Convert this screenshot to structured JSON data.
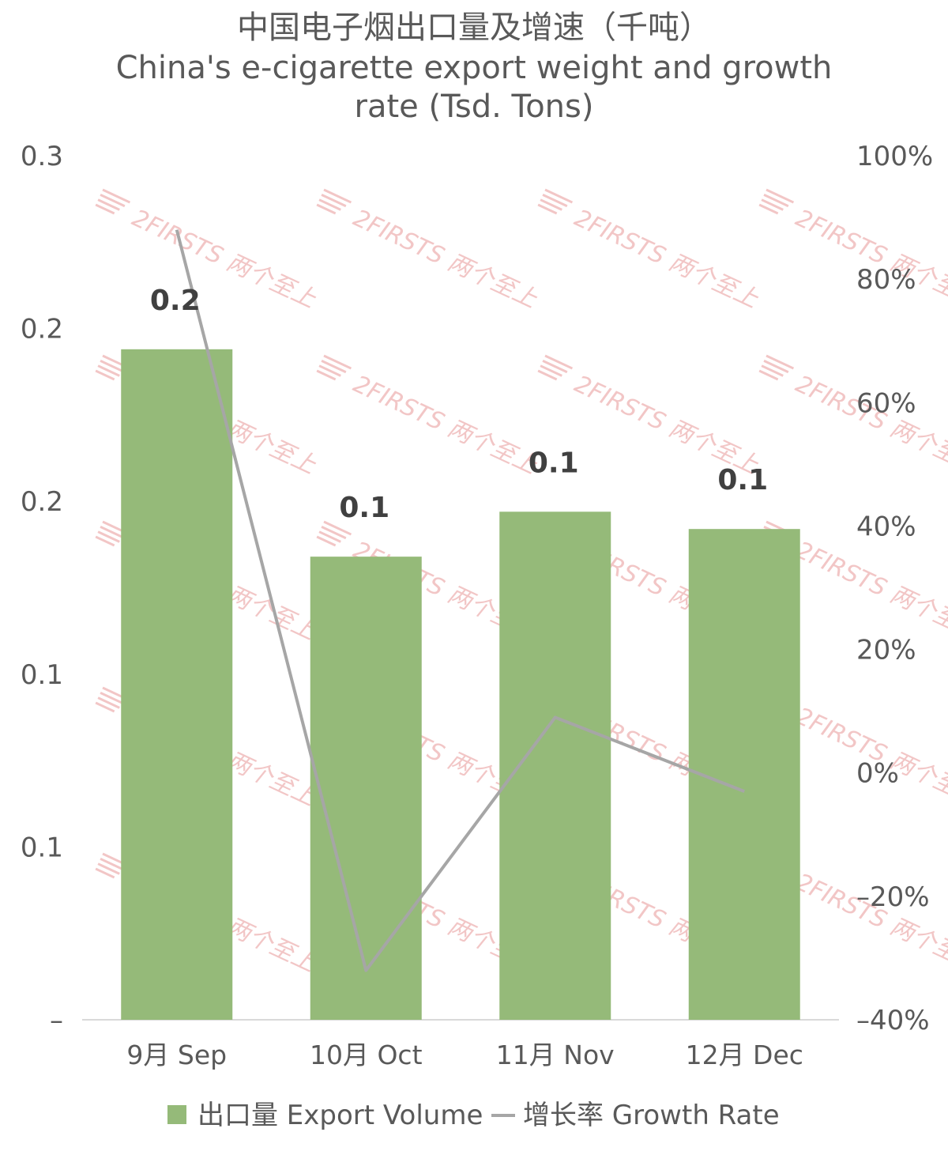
{
  "chart_data": {
    "type": "bar+line",
    "title_lines": [
      "中国电子烟出口量及增速（千吨）",
      "China's e-cigarette export weight and growth",
      "rate (Tsd. Tons)"
    ],
    "categories": [
      "9月 Sep",
      "10月 Oct",
      "11月 Nov",
      "12月 Dec"
    ],
    "series": [
      {
        "name": "出口量 Export Volume",
        "type": "bar",
        "axis": "left",
        "color": "#95ba79",
        "values": [
          0.194,
          0.134,
          0.147,
          0.142
        ],
        "data_labels": [
          "0.2",
          "0.1",
          "0.1",
          "0.1"
        ]
      },
      {
        "name": "增长率 Growth Rate",
        "type": "line",
        "axis": "right",
        "color": "#a6a6a6",
        "values": [
          88,
          -32,
          9,
          -3
        ]
      }
    ],
    "left_axis": {
      "ylim": [
        0,
        0.25
      ],
      "ticks": [
        0,
        0.05,
        0.1,
        0.15,
        0.2,
        0.25
      ],
      "tick_labels": [
        "–",
        "0.1",
        "0.1",
        "0.2",
        "0.2",
        "0.3"
      ]
    },
    "right_axis": {
      "ylim": [
        -40,
        100
      ],
      "ticks": [
        -40,
        -20,
        0,
        20,
        40,
        60,
        80,
        100
      ],
      "tick_labels": [
        "–40%",
        "–20%",
        "0%",
        "20%",
        "40%",
        "60%",
        "80%",
        "100%"
      ]
    },
    "grid": false,
    "legend_position": "bottom"
  },
  "watermark": "2FIRSTS 两个至上"
}
